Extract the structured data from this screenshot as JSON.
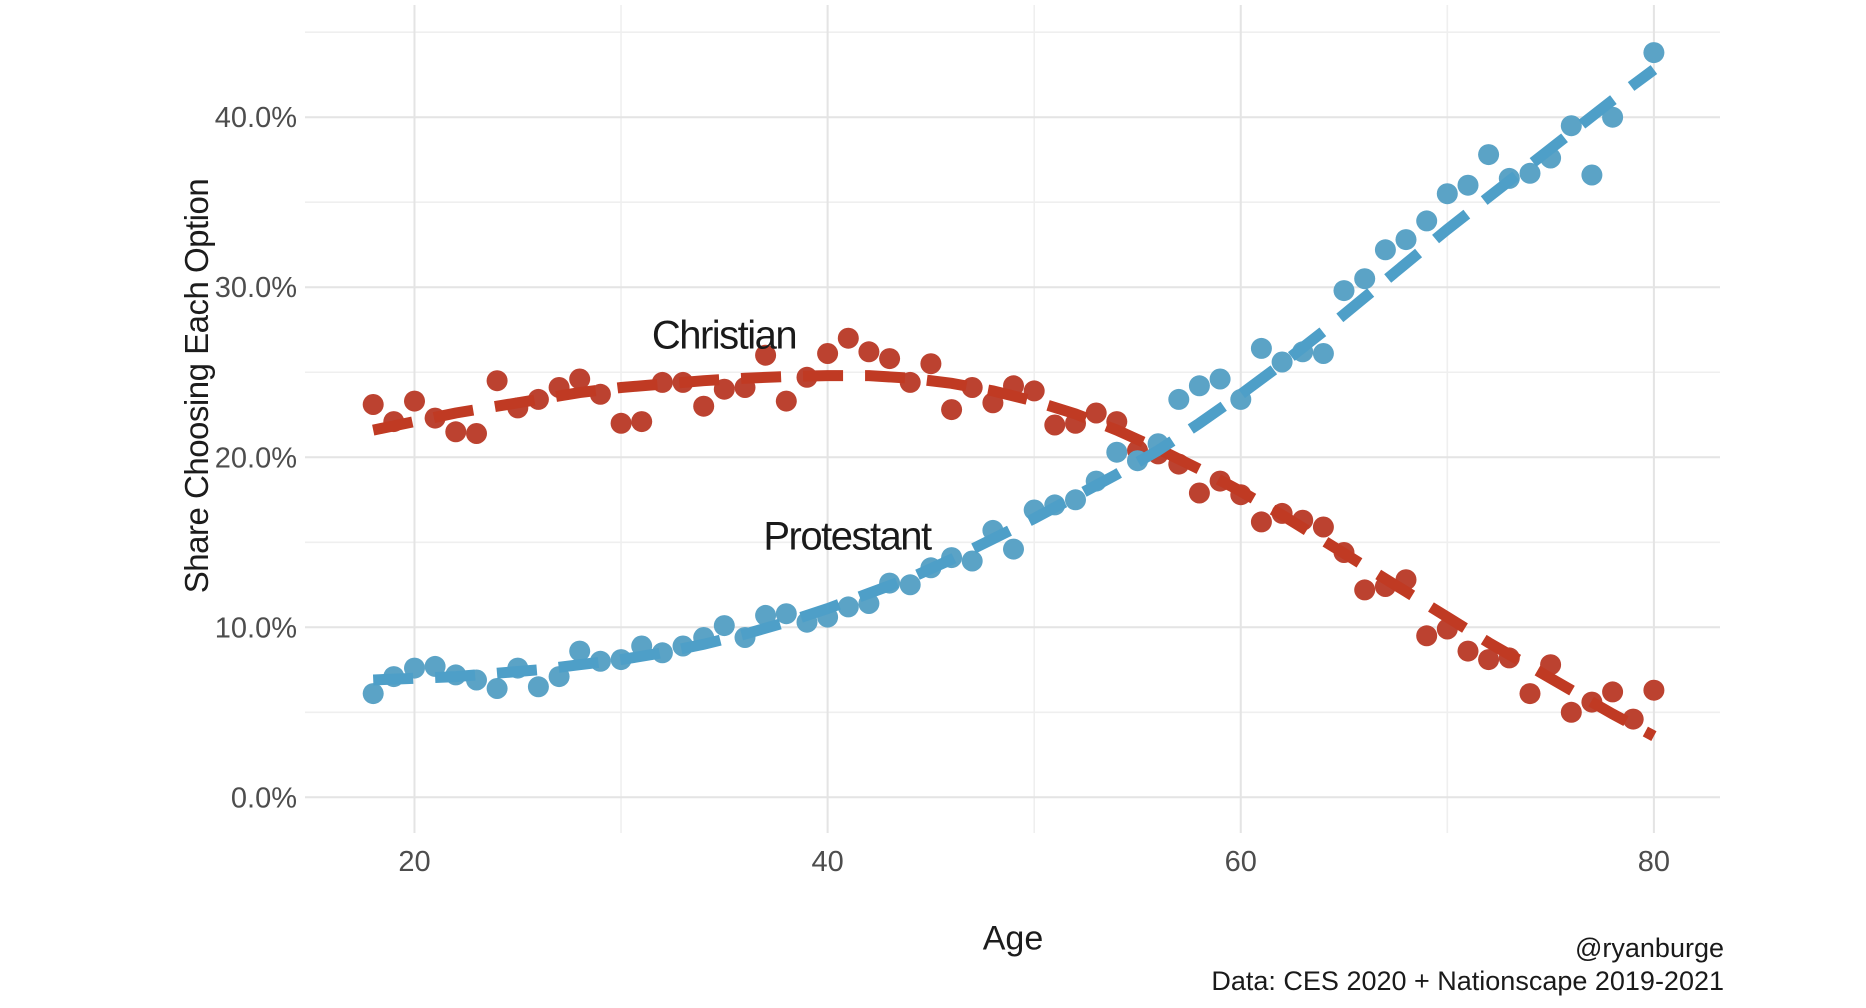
{
  "caption": {
    "handle": "@ryanburge",
    "source": "Data: CES 2020 + Nationscape 2019-2021"
  },
  "chart_data": {
    "type": "scatter",
    "title": "",
    "xlabel": "Age",
    "ylabel": "Share Choosing Each Option",
    "x_axis": {
      "tick_values": [
        20,
        40,
        60,
        80
      ],
      "tick_labels": [
        "20",
        "40",
        "60",
        "80"
      ],
      "minor_tick_values": [
        30,
        50,
        70
      ],
      "range": [
        14.7,
        83.2
      ],
      "grid": true
    },
    "y_axis": {
      "tick_values": [
        0,
        10,
        20,
        30,
        40
      ],
      "tick_labels": [
        "0.0%",
        "10.0%",
        "20.0%",
        "30.0%",
        "40.0%"
      ],
      "minor_tick_values": [
        5,
        15,
        25,
        35,
        45
      ],
      "range": [
        -2.1,
        46.6
      ],
      "grid": true
    },
    "colors": {
      "grid_major": "#e4e4e4",
      "grid_minor": "#efefef",
      "tick_label": "#4d4d4d"
    },
    "ages": [
      18,
      19,
      20,
      21,
      22,
      23,
      24,
      25,
      26,
      27,
      28,
      29,
      30,
      31,
      32,
      33,
      34,
      35,
      36,
      37,
      38,
      39,
      40,
      41,
      42,
      43,
      44,
      45,
      46,
      47,
      48,
      49,
      50,
      51,
      52,
      53,
      54,
      55,
      56,
      57,
      58,
      59,
      60,
      61,
      62,
      63,
      64,
      65,
      66,
      67,
      68,
      69,
      70,
      71,
      72,
      73,
      74,
      75,
      76,
      77,
      78,
      79,
      80
    ],
    "series": [
      {
        "name": "Christian",
        "color": "#bc4230",
        "trend_color": "#c03a23",
        "values": [
          23.1,
          22.1,
          23.3,
          22.3,
          21.5,
          21.4,
          24.5,
          22.9,
          23.4,
          24.1,
          24.6,
          23.7,
          22.0,
          22.1,
          24.4,
          24.4,
          23.0,
          24.0,
          24.1,
          26.0,
          23.3,
          24.7,
          26.1,
          27.0,
          26.2,
          25.8,
          24.4,
          25.5,
          22.8,
          24.1,
          23.2,
          24.2,
          23.9,
          21.9,
          22.0,
          22.6,
          22.1,
          20.4,
          20.2,
          19.6,
          17.9,
          18.6,
          17.8,
          16.2,
          16.7,
          16.3,
          15.9,
          14.4,
          12.2,
          12.4,
          12.8,
          9.5,
          9.9,
          8.6,
          8.1,
          8.2,
          6.1,
          7.8,
          5.0,
          5.6,
          6.2,
          4.6,
          6.3
        ],
        "trend": [
          [
            18,
            21.6
          ],
          [
            20,
            22.1
          ],
          [
            22,
            22.6
          ],
          [
            24,
            23.0
          ],
          [
            26,
            23.4
          ],
          [
            28,
            23.8
          ],
          [
            30,
            24.1
          ],
          [
            32,
            24.3
          ],
          [
            34,
            24.5
          ],
          [
            36,
            24.65
          ],
          [
            38,
            24.75
          ],
          [
            40,
            24.8
          ],
          [
            42,
            24.8
          ],
          [
            44,
            24.65
          ],
          [
            46,
            24.35
          ],
          [
            48,
            23.9
          ],
          [
            50,
            23.3
          ],
          [
            52,
            22.55
          ],
          [
            54,
            21.6
          ],
          [
            56,
            20.5
          ],
          [
            58,
            19.3
          ],
          [
            60,
            18.0
          ],
          [
            62,
            16.6
          ],
          [
            64,
            15.1
          ],
          [
            66,
            13.6
          ],
          [
            68,
            12.1
          ],
          [
            70,
            10.6
          ],
          [
            72,
            9.1
          ],
          [
            74,
            7.7
          ],
          [
            76,
            6.3
          ],
          [
            78,
            4.9
          ],
          [
            80,
            3.6
          ]
        ]
      },
      {
        "name": "Protestant",
        "color": "#5ba3c6",
        "trend_color": "#4e9fc8",
        "values": [
          6.1,
          7.1,
          7.6,
          7.7,
          7.2,
          6.9,
          6.4,
          7.6,
          6.5,
          7.1,
          8.6,
          8.0,
          8.1,
          8.9,
          8.5,
          8.9,
          9.4,
          10.1,
          9.4,
          10.7,
          10.8,
          10.3,
          10.6,
          11.2,
          11.4,
          12.6,
          12.5,
          13.5,
          14.1,
          13.9,
          15.7,
          14.6,
          16.9,
          17.2,
          17.5,
          18.6,
          20.3,
          19.8,
          20.8,
          23.4,
          24.2,
          24.6,
          23.4,
          26.4,
          25.6,
          26.2,
          26.1,
          29.8,
          30.5,
          32.2,
          32.8,
          33.9,
          35.5,
          36.0,
          37.8,
          36.4,
          36.7,
          37.6,
          39.5,
          36.6,
          40.0,
          null,
          43.8
        ],
        "trend": [
          [
            18,
            6.9
          ],
          [
            20,
            7.0
          ],
          [
            22,
            7.1
          ],
          [
            24,
            7.3
          ],
          [
            26,
            7.5
          ],
          [
            28,
            7.8
          ],
          [
            30,
            8.1
          ],
          [
            32,
            8.5
          ],
          [
            34,
            9.0
          ],
          [
            36,
            9.6
          ],
          [
            38,
            10.3
          ],
          [
            40,
            11.1
          ],
          [
            42,
            12.0
          ],
          [
            44,
            12.9
          ],
          [
            46,
            14.0
          ],
          [
            48,
            15.2
          ],
          [
            50,
            16.4
          ],
          [
            52,
            17.7
          ],
          [
            54,
            19.0
          ],
          [
            56,
            20.4
          ],
          [
            58,
            22.0
          ],
          [
            60,
            23.7
          ],
          [
            62,
            25.5
          ],
          [
            64,
            27.4
          ],
          [
            66,
            29.4
          ],
          [
            68,
            31.4
          ],
          [
            70,
            33.4
          ],
          [
            72,
            35.3
          ],
          [
            74,
            37.2
          ],
          [
            76,
            39.1
          ],
          [
            78,
            41.0
          ],
          [
            80,
            42.8
          ]
        ]
      }
    ],
    "annotations": [
      {
        "text": "Christian",
        "series": 0
      },
      {
        "text": "Protestant",
        "series": 1
      }
    ],
    "legend_position": "none",
    "point_radius_px": 10.5,
    "trend_style": "dashed"
  }
}
